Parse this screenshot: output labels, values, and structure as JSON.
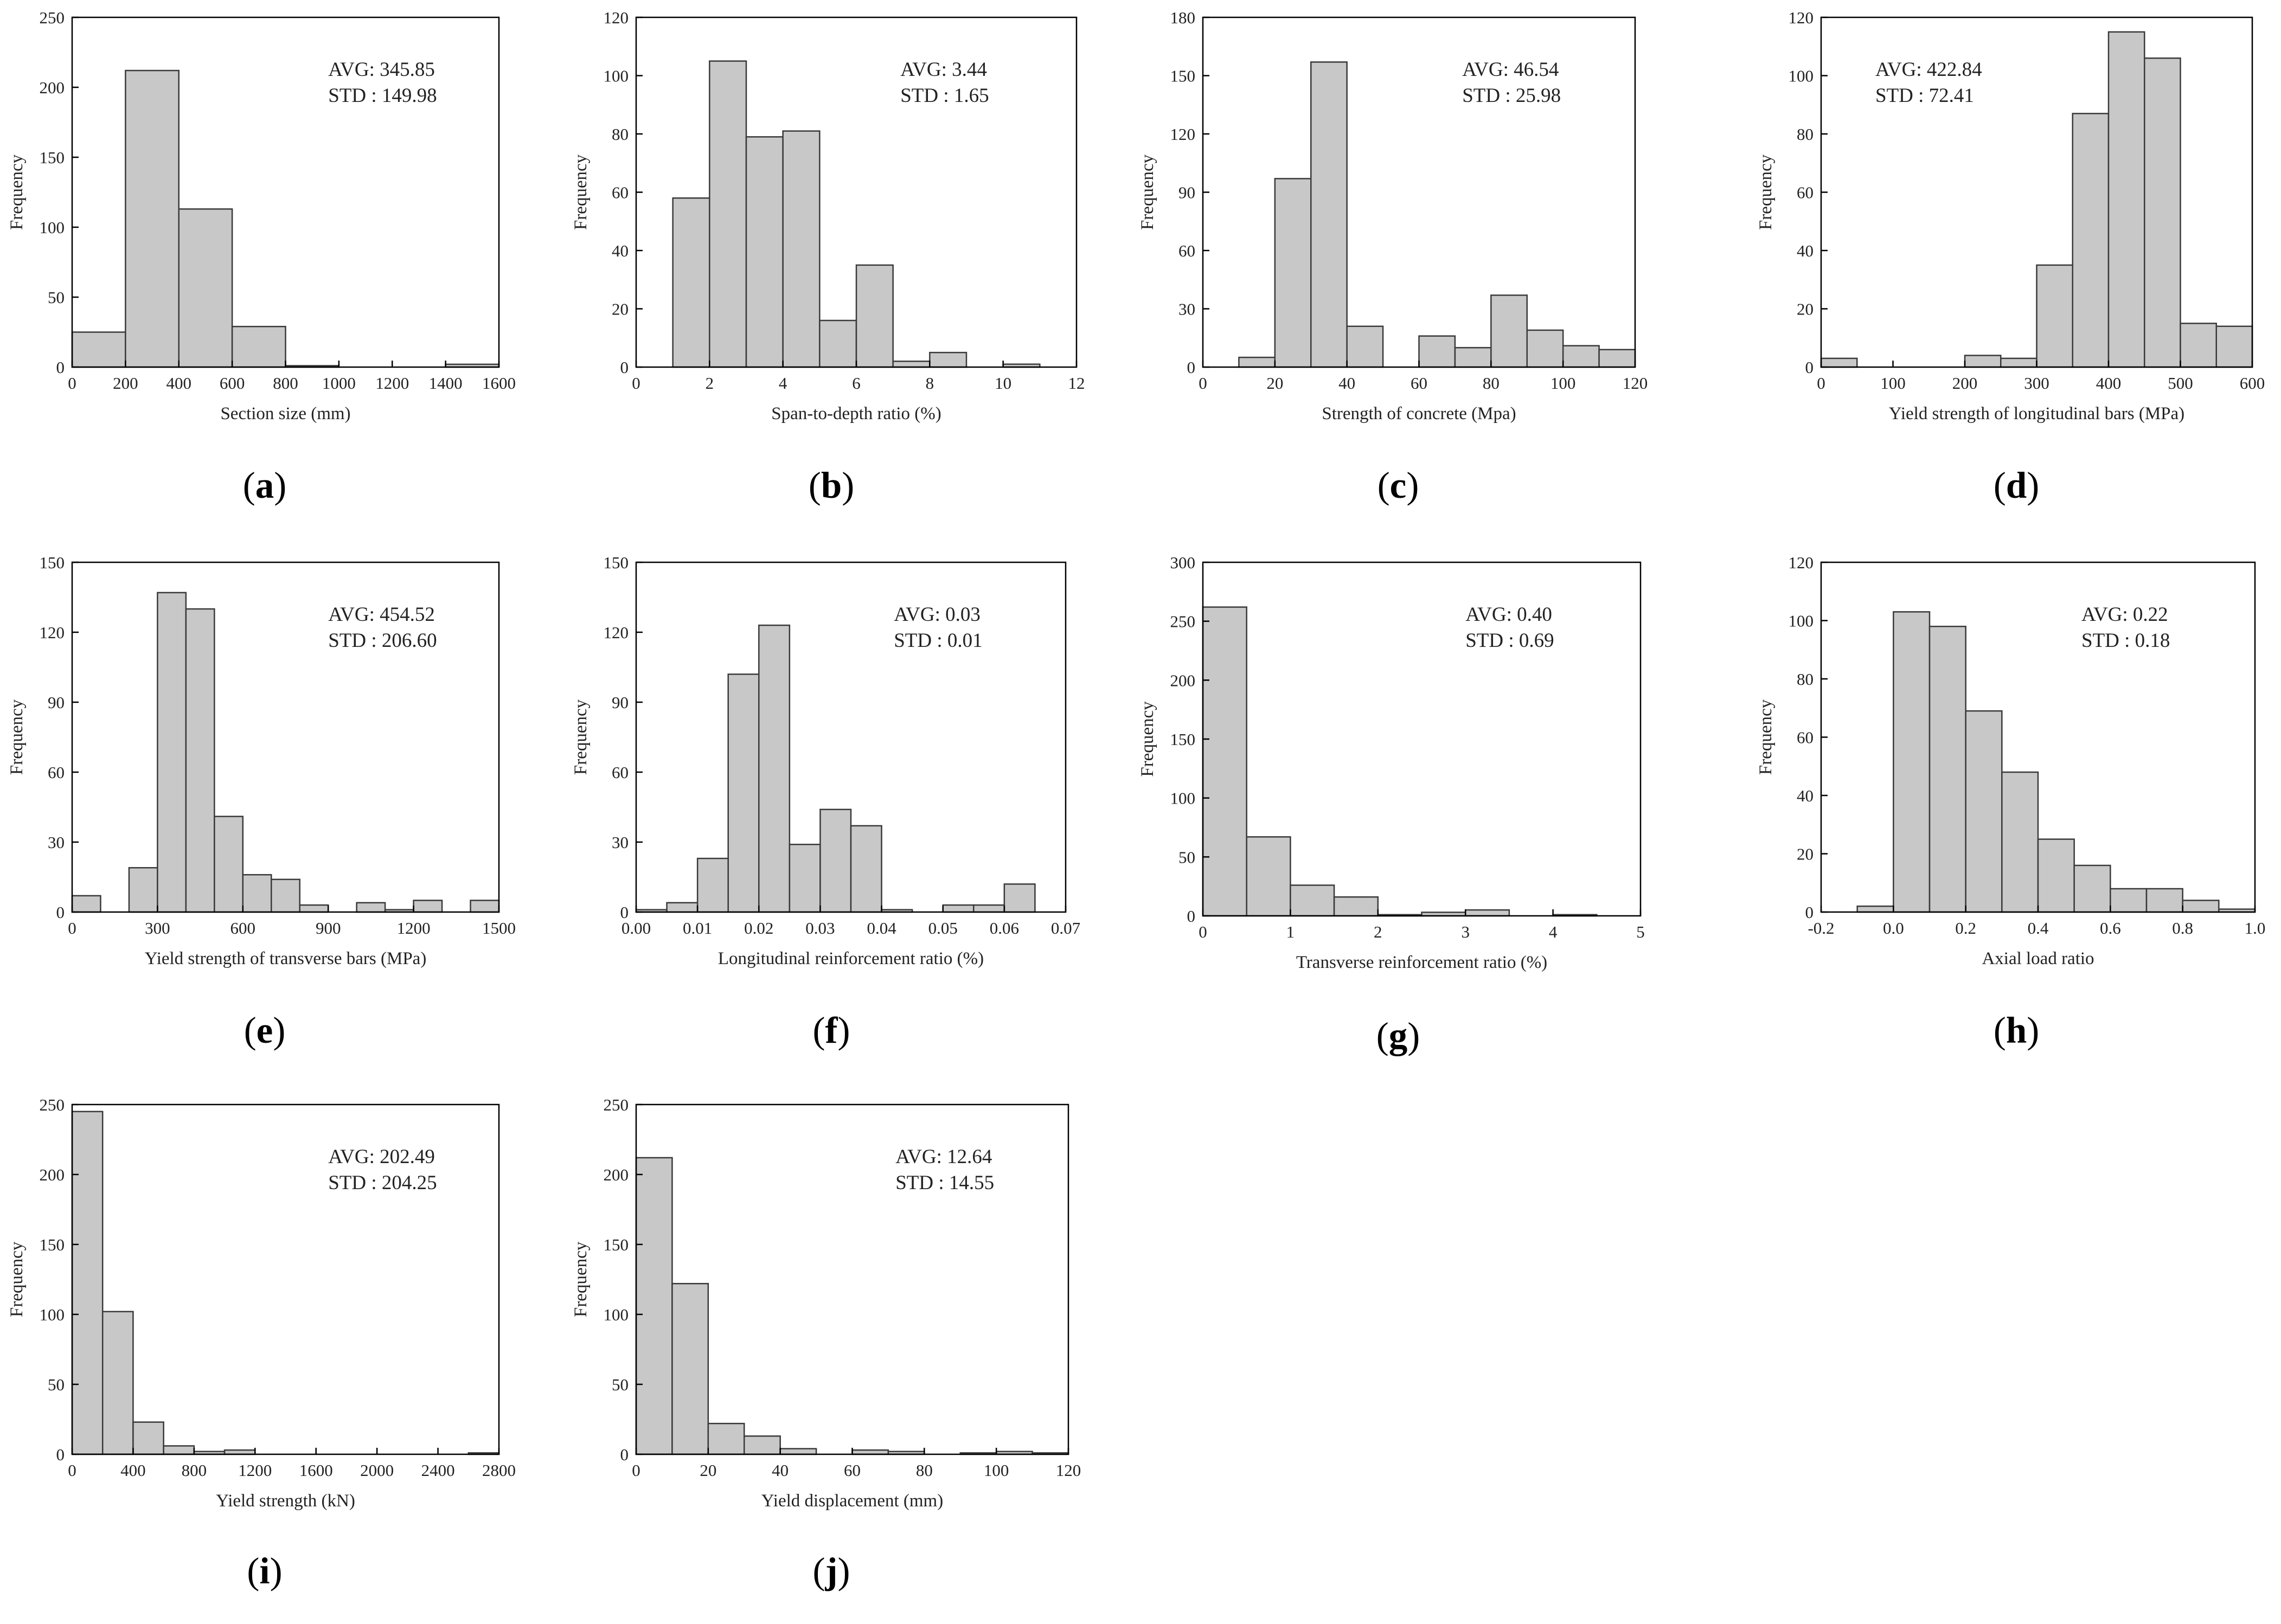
{
  "chart_data": [
    {
      "type": "bar",
      "panel": "(a)",
      "panel_letter": "a",
      "bins": [
        [
          0,
          200
        ],
        [
          200,
          400
        ],
        [
          400,
          600
        ],
        [
          600,
          800
        ],
        [
          800,
          1000
        ],
        [
          1000,
          1200
        ],
        [
          1200,
          1400
        ],
        [
          1400,
          1600
        ]
      ],
      "values": [
        25,
        212,
        113,
        29,
        1,
        0,
        0,
        2
      ],
      "xlim": [
        0,
        1600
      ],
      "ylim": [
        0,
        250
      ],
      "xticks": [
        0,
        200,
        400,
        600,
        800,
        1000,
        1200,
        1400,
        1600
      ],
      "xtick_labels": [
        "0",
        "200",
        "400",
        "600",
        "800",
        "1000",
        "1200",
        "1400",
        "1600"
      ],
      "yticks": [
        0,
        50,
        100,
        150,
        200,
        250
      ],
      "ytick_labels": [
        "0",
        "50",
        "100",
        "150",
        "200",
        "250"
      ],
      "xlabel": "Section size (mm)",
      "ylabel": "Frequency",
      "avg_text": "AVG: 345.85",
      "std_text": "STD : 149.98",
      "stats_anchor": "top-right"
    },
    {
      "type": "bar",
      "panel": "(b)",
      "panel_letter": "b",
      "bins": [
        [
          1,
          2
        ],
        [
          2,
          3
        ],
        [
          3,
          4
        ],
        [
          4,
          5
        ],
        [
          5,
          6
        ],
        [
          6,
          7
        ],
        [
          7,
          8
        ],
        [
          8,
          9
        ],
        [
          9,
          10
        ],
        [
          10,
          11
        ]
      ],
      "values": [
        58,
        105,
        79,
        81,
        16,
        35,
        2,
        5,
        0,
        1
      ],
      "xlim": [
        0,
        12
      ],
      "ylim": [
        0,
        120
      ],
      "xticks": [
        0,
        2,
        4,
        6,
        8,
        10,
        12
      ],
      "xtick_labels": [
        "0",
        "2",
        "4",
        "6",
        "8",
        "10",
        "12"
      ],
      "yticks": [
        0,
        20,
        40,
        60,
        80,
        100,
        120
      ],
      "ytick_labels": [
        "0",
        "20",
        "40",
        "60",
        "80",
        "100",
        "120"
      ],
      "xlabel": "Span-to-depth ratio (%)",
      "ylabel": "Frequency",
      "avg_text": "AVG: 3.44",
      "std_text": "STD : 1.65",
      "stats_anchor": "top-right"
    },
    {
      "type": "bar",
      "panel": "(c)",
      "panel_letter": "c",
      "bins": [
        [
          10,
          20
        ],
        [
          20,
          30
        ],
        [
          30,
          40
        ],
        [
          40,
          50
        ],
        [
          50,
          60
        ],
        [
          60,
          70
        ],
        [
          70,
          80
        ],
        [
          80,
          90
        ],
        [
          90,
          100
        ],
        [
          100,
          110
        ],
        [
          110,
          120
        ]
      ],
      "values": [
        5,
        97,
        157,
        21,
        0,
        16,
        10,
        37,
        19,
        11,
        9
      ],
      "xlim": [
        0,
        120
      ],
      "ylim": [
        0,
        180
      ],
      "xticks": [
        0,
        20,
        40,
        60,
        80,
        100,
        120
      ],
      "xtick_labels": [
        "0",
        "20",
        "40",
        "60",
        "80",
        "100",
        "120"
      ],
      "yticks": [
        0,
        30,
        60,
        90,
        120,
        150,
        180
      ],
      "ytick_labels": [
        "0",
        "30",
        "60",
        "90",
        "120",
        "150",
        "180"
      ],
      "xlabel": "Strength of concrete (Mpa)",
      "ylabel": "Frequency",
      "avg_text": "AVG: 46.54",
      "std_text": "STD : 25.98",
      "stats_anchor": "top-right"
    },
    {
      "type": "bar",
      "panel": "(d)",
      "panel_letter": "d",
      "bins": [
        [
          0,
          50
        ],
        [
          50,
          100
        ],
        [
          100,
          150
        ],
        [
          150,
          200
        ],
        [
          200,
          250
        ],
        [
          250,
          300
        ],
        [
          300,
          350
        ],
        [
          350,
          400
        ],
        [
          400,
          450
        ],
        [
          450,
          500
        ],
        [
          500,
          550
        ],
        [
          550,
          600
        ]
      ],
      "values": [
        3,
        0,
        0,
        0,
        4,
        3,
        35,
        87,
        115,
        106,
        15,
        14
      ],
      "xlim": [
        0,
        600
      ],
      "ylim": [
        0,
        120
      ],
      "xticks": [
        0,
        100,
        200,
        300,
        400,
        500,
        600
      ],
      "xtick_labels": [
        "0",
        "100",
        "200",
        "300",
        "400",
        "500",
        "600"
      ],
      "yticks": [
        0,
        20,
        40,
        60,
        80,
        100,
        120
      ],
      "ytick_labels": [
        "0",
        "20",
        "40",
        "60",
        "80",
        "100",
        "120"
      ],
      "xlabel": "Yield strength of longitudinal bars (MPa)",
      "ylabel": "Frequency",
      "avg_text": "AVG: 422.84",
      "std_text": "STD : 72.41",
      "stats_anchor": "top-left"
    },
    {
      "type": "bar",
      "panel": "(e)",
      "panel_letter": "e",
      "bins": [
        [
          0,
          100
        ],
        [
          100,
          200
        ],
        [
          200,
          300
        ],
        [
          300,
          400
        ],
        [
          400,
          500
        ],
        [
          500,
          600
        ],
        [
          600,
          700
        ],
        [
          700,
          800
        ],
        [
          800,
          900
        ],
        [
          900,
          1000
        ],
        [
          1000,
          1100
        ],
        [
          1100,
          1200
        ],
        [
          1200,
          1300
        ],
        [
          1300,
          1400
        ],
        [
          1400,
          1500
        ]
      ],
      "values": [
        7,
        0,
        19,
        137,
        130,
        41,
        16,
        14,
        3,
        0,
        4,
        1,
        5,
        0,
        5
      ],
      "xlim": [
        0,
        1500
      ],
      "ylim": [
        0,
        150
      ],
      "xticks": [
        0,
        300,
        600,
        900,
        1200,
        1500
      ],
      "xtick_labels": [
        "0",
        "300",
        "600",
        "900",
        "1200",
        "1500"
      ],
      "yticks": [
        0,
        30,
        60,
        90,
        120,
        150
      ],
      "ytick_labels": [
        "0",
        "30",
        "60",
        "90",
        "120",
        "150"
      ],
      "xlabel": "Yield strength of transverse bars (MPa)",
      "ylabel": "Frequency",
      "avg_text": "AVG: 454.52",
      "std_text": "STD : 206.60",
      "stats_anchor": "top-right"
    },
    {
      "type": "bar",
      "panel": "(f)",
      "panel_letter": "f",
      "bins": [
        [
          0,
          0.005
        ],
        [
          0.005,
          0.01
        ],
        [
          0.01,
          0.015
        ],
        [
          0.015,
          0.02
        ],
        [
          0.02,
          0.025
        ],
        [
          0.025,
          0.03
        ],
        [
          0.03,
          0.035
        ],
        [
          0.035,
          0.04
        ],
        [
          0.04,
          0.045
        ],
        [
          0.045,
          0.05
        ],
        [
          0.05,
          0.055
        ],
        [
          0.055,
          0.06
        ],
        [
          0.06,
          0.065
        ]
      ],
      "values": [
        1,
        4,
        23,
        102,
        123,
        29,
        44,
        37,
        1,
        0,
        3,
        3,
        12
      ],
      "xlim": [
        0,
        0.07
      ],
      "ylim": [
        0,
        150
      ],
      "xticks": [
        0,
        0.01,
        0.02,
        0.03,
        0.04,
        0.05,
        0.06,
        0.07
      ],
      "xtick_labels": [
        "0.00",
        "0.01",
        "0.02",
        "0.03",
        "0.04",
        "0.05",
        "0.06",
        "0.07"
      ],
      "yticks": [
        0,
        30,
        60,
        90,
        120,
        150
      ],
      "ytick_labels": [
        "0",
        "30",
        "60",
        "90",
        "120",
        "150"
      ],
      "xlabel": "Longitudinal reinforcement ratio (%)",
      "ylabel": "Frequency",
      "avg_text": "AVG: 0.03",
      "std_text": "STD : 0.01",
      "stats_anchor": "top-right"
    },
    {
      "type": "bar",
      "panel": "(g)",
      "panel_letter": "g",
      "bins": [
        [
          0,
          0.5
        ],
        [
          0.5,
          1
        ],
        [
          1,
          1.5
        ],
        [
          1.5,
          2
        ],
        [
          2,
          2.5
        ],
        [
          2.5,
          3
        ],
        [
          3,
          3.5
        ],
        [
          3.5,
          4
        ],
        [
          4,
          4.5
        ]
      ],
      "values": [
        262,
        67,
        26,
        16,
        1,
        3,
        5,
        0,
        1
      ],
      "xlim": [
        0,
        5
      ],
      "ylim": [
        0,
        300
      ],
      "xticks": [
        0,
        1,
        2,
        3,
        4,
        5
      ],
      "xtick_labels": [
        "0",
        "1",
        "2",
        "3",
        "4",
        "5"
      ],
      "yticks": [
        0,
        50,
        100,
        150,
        200,
        250,
        300
      ],
      "ytick_labels": [
        "0",
        "50",
        "100",
        "150",
        "200",
        "250",
        "300"
      ],
      "xlabel": "Transverse reinforcement ratio (%)",
      "ylabel": "Frequency",
      "avg_text": "AVG: 0.40",
      "std_text": "STD : 0.69",
      "stats_anchor": "top-right"
    },
    {
      "type": "bar",
      "panel": "(h)",
      "panel_letter": "h",
      "bins": [
        [
          -0.1,
          0
        ],
        [
          0,
          0.1
        ],
        [
          0.1,
          0.2
        ],
        [
          0.2,
          0.3
        ],
        [
          0.3,
          0.4
        ],
        [
          0.4,
          0.5
        ],
        [
          0.5,
          0.6
        ],
        [
          0.6,
          0.7
        ],
        [
          0.7,
          0.8
        ],
        [
          0.8,
          0.9
        ],
        [
          0.9,
          1.0
        ]
      ],
      "values": [
        2,
        103,
        98,
        69,
        48,
        25,
        16,
        8,
        8,
        4,
        1
      ],
      "xlim": [
        -0.2,
        1.0
      ],
      "ylim": [
        0,
        120
      ],
      "xticks": [
        -0.2,
        0,
        0.2,
        0.4,
        0.6,
        0.8,
        1.0
      ],
      "xtick_labels": [
        "-0.2",
        "0.0",
        "0.2",
        "0.4",
        "0.6",
        "0.8",
        "1.0"
      ],
      "yticks": [
        0,
        20,
        40,
        60,
        80,
        100,
        120
      ],
      "ytick_labels": [
        "0",
        "20",
        "40",
        "60",
        "80",
        "100",
        "120"
      ],
      "xlabel": "Axial load ratio",
      "ylabel": "Frequency",
      "avg_text": "AVG: 0.22",
      "std_text": "STD : 0.18",
      "stats_anchor": "top-right"
    },
    {
      "type": "bar",
      "panel": "(i)",
      "panel_letter": "i",
      "bins": [
        [
          0,
          200
        ],
        [
          200,
          400
        ],
        [
          400,
          600
        ],
        [
          600,
          800
        ],
        [
          800,
          1000
        ],
        [
          1000,
          1200
        ],
        [
          1200,
          1400
        ],
        [
          1400,
          1600
        ],
        [
          1600,
          1800
        ],
        [
          1800,
          2000
        ],
        [
          2000,
          2200
        ],
        [
          2200,
          2400
        ],
        [
          2400,
          2600
        ],
        [
          2600,
          2800
        ]
      ],
      "values": [
        245,
        102,
        23,
        6,
        2,
        3,
        0,
        0,
        0,
        0,
        0,
        0,
        0,
        1
      ],
      "xlim": [
        0,
        2800
      ],
      "ylim": [
        0,
        250
      ],
      "xticks": [
        0,
        400,
        800,
        1200,
        1600,
        2000,
        2400,
        2800
      ],
      "xtick_labels": [
        "0",
        "400",
        "800",
        "1200",
        "1600",
        "2000",
        "2400",
        "2800"
      ],
      "yticks": [
        0,
        50,
        100,
        150,
        200,
        250
      ],
      "ytick_labels": [
        "0",
        "50",
        "100",
        "150",
        "200",
        "250"
      ],
      "xlabel": "Yield strength (kN)",
      "ylabel": "Frequency",
      "avg_text": "AVG: 202.49",
      "std_text": "STD : 204.25",
      "stats_anchor": "top-right"
    },
    {
      "type": "bar",
      "panel": "(j)",
      "panel_letter": "j",
      "bins": [
        [
          0,
          10
        ],
        [
          10,
          20
        ],
        [
          20,
          30
        ],
        [
          30,
          40
        ],
        [
          40,
          50
        ],
        [
          50,
          60
        ],
        [
          60,
          70
        ],
        [
          70,
          80
        ],
        [
          80,
          90
        ],
        [
          90,
          100
        ],
        [
          100,
          110
        ],
        [
          110,
          120
        ]
      ],
      "values": [
        212,
        122,
        22,
        13,
        4,
        0,
        3,
        2,
        0,
        1,
        2,
        1
      ],
      "xlim": [
        0,
        120
      ],
      "ylim": [
        0,
        250
      ],
      "xticks": [
        0,
        20,
        40,
        60,
        80,
        100,
        120
      ],
      "xtick_labels": [
        "0",
        "20",
        "40",
        "60",
        "80",
        "100",
        "120"
      ],
      "yticks": [
        0,
        50,
        100,
        150,
        200,
        250
      ],
      "ytick_labels": [
        "0",
        "50",
        "100",
        "150",
        "200",
        "250"
      ],
      "xlabel": "Yield displacement (mm)",
      "ylabel": "Frequency",
      "avg_text": "AVG: 12.64",
      "std_text": "STD : 14.55",
      "stats_anchor": "top-right"
    }
  ]
}
